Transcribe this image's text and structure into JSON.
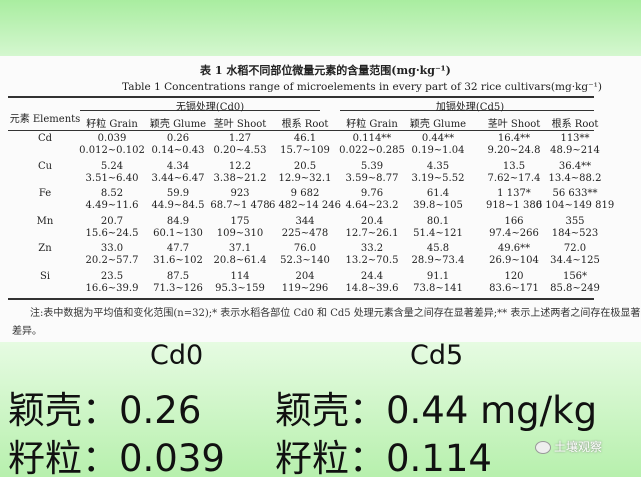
{
  "table": {
    "title_cn": "表 1  水稻不同部位微量元素的含量范围(mg·kg⁻¹)",
    "title_en": "Table 1  Concentrations range of microelements in every part of 32 rice cultivars(mg·kg⁻¹)",
    "element_header": "元素 Elements",
    "group_cd0": "无镉处理(Cd0)",
    "group_cd5": "加镉处理(Cd5)",
    "columns": [
      "籽粒 Grain",
      "颖壳 Glume",
      "茎叶 Shoot",
      "根系 Root",
      "籽粒 Grain",
      "颖壳 Glume",
      "茎叶 Shoot",
      "根系 Root"
    ],
    "rows": [
      {
        "element": "Cd",
        "means": [
          "0.039",
          "0.26",
          "1.27",
          "46.1",
          "0.114**",
          "0.44**",
          "16.4**",
          "113**"
        ],
        "ranges": [
          "0.012~0.102",
          "0.14~0.43",
          "0.20~4.53",
          "15.7~109",
          "0.022~0.285",
          "0.19~1.04",
          "9.20~24.8",
          "48.9~214"
        ]
      },
      {
        "element": "Cu",
        "means": [
          "5.24",
          "4.34",
          "12.2",
          "20.5",
          "5.39",
          "4.35",
          "13.5",
          "36.4**"
        ],
        "ranges": [
          "3.51~6.40",
          "3.44~6.47",
          "3.38~21.2",
          "12.9~32.1",
          "3.59~8.77",
          "3.19~5.52",
          "7.62~17.4",
          "13.4~88.2"
        ]
      },
      {
        "element": "Fe",
        "means": [
          "8.52",
          "59.9",
          "923",
          "9 682",
          "9.76",
          "61.4",
          "1 137*",
          "56 633**"
        ],
        "ranges": [
          "4.49~11.6",
          "44.9~84.5",
          "68.7~1 478",
          "6 482~14 246",
          "4.64~23.2",
          "39.8~105",
          "918~1 380",
          "6 104~149 819"
        ]
      },
      {
        "element": "Mn",
        "means": [
          "20.7",
          "84.9",
          "175",
          "344",
          "20.4",
          "80.1",
          "166",
          "355"
        ],
        "ranges": [
          "15.6~24.5",
          "60.1~130",
          "109~310",
          "225~478",
          "12.7~26.1",
          "51.4~121",
          "97.4~266",
          "184~523"
        ]
      },
      {
        "element": "Zn",
        "means": [
          "33.0",
          "47.7",
          "37.1",
          "76.0",
          "33.2",
          "45.8",
          "49.6**",
          "72.0"
        ],
        "ranges": [
          "20.2~57.7",
          "31.6~102",
          "20.8~61.4",
          "52.3~140",
          "13.2~70.5",
          "28.9~73.4",
          "26.9~104",
          "34.4~125"
        ]
      },
      {
        "element": "Si",
        "means": [
          "23.5",
          "87.5",
          "114",
          "204",
          "24.4",
          "91.1",
          "120",
          "156*"
        ],
        "ranges": [
          "16.6~39.9",
          "71.3~126",
          "95.3~159",
          "119~296",
          "14.8~39.6",
          "73.8~141",
          "83.6~171",
          "85.8~249"
        ]
      }
    ],
    "note_line1": "注:表中数据为平均值和变化范围(n=32);* 表示水稻各部位 Cd0 和 Cd5 处理元素含量之间存在显著差异;** 表示上述两者之间存在极显著",
    "note_line2": "差异。"
  },
  "summary": {
    "cd0_label": "Cd0",
    "cd5_label": "Cd5",
    "glume_cd0": "颖壳：0.26",
    "glume_cd5": "颖壳：0.44 mg/kg",
    "grain_cd0": "籽粒：0.039",
    "grain_cd5": "籽粒：0.114"
  },
  "watermark": {
    "text": "土壤观察",
    "icon": "wechat-icon"
  }
}
